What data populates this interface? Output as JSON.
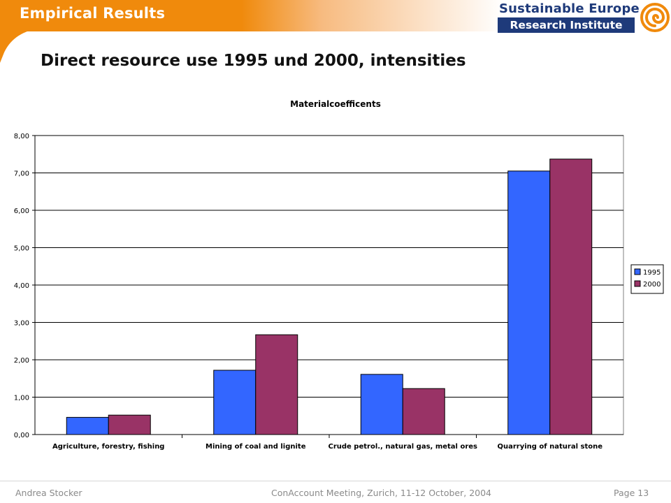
{
  "header": {
    "section_title": "Empirical Results",
    "logo_line1": "Sustainable Europe",
    "logo_line2": "Research Institute",
    "accent_color": "#f08a0c",
    "logo_color": "#1e3a7a"
  },
  "slide": {
    "title": "Direct resource use 1995 und 2000, intensities"
  },
  "chart_data": {
    "type": "bar",
    "title": "Materialcoefficents",
    "xlabel": "",
    "ylabel": "",
    "categories": [
      "Agriculture, forestry, fishing",
      "Mining of coal and lignite",
      "Crude petrol., natural gas, metal ores",
      "Quarrying of natural stone"
    ],
    "series": [
      {
        "name": "1995",
        "color": "#3366ff",
        "values": [
          0.46,
          1.72,
          1.61,
          7.05
        ]
      },
      {
        "name": "2000",
        "color": "#993366",
        "values": [
          0.52,
          2.67,
          1.23,
          7.37
        ]
      }
    ],
    "ylim": [
      0,
      8
    ],
    "yticks": [
      "0,00",
      "1,00",
      "2,00",
      "3,00",
      "4,00",
      "5,00",
      "6,00",
      "7,00",
      "8,00"
    ],
    "grid": true,
    "legend": "right"
  },
  "footer": {
    "author": "Andrea Stocker",
    "event": "ConAccount Meeting, Zurich, 11-12 October, 2004",
    "page": "Page 13"
  }
}
